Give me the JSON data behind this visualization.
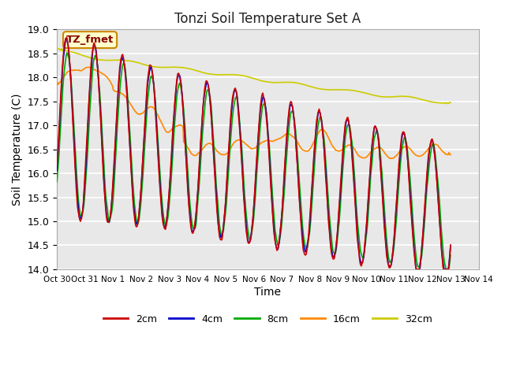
{
  "title": "Tonzi Soil Temperature Set A",
  "xlabel": "Time",
  "ylabel": "Soil Temperature (C)",
  "ylim": [
    14.0,
    19.0
  ],
  "yticks": [
    14.0,
    14.5,
    15.0,
    15.5,
    16.0,
    16.5,
    17.0,
    17.5,
    18.0,
    18.5,
    19.0
  ],
  "xtick_labels": [
    "Oct 30",
    "Oct 31",
    "Nov 1",
    "Nov 2",
    "Nov 3",
    "Nov 4",
    "Nov 5",
    "Nov 6",
    "Nov 7",
    "Nov 8",
    "Nov 9",
    "Nov 10",
    "Nov 11",
    "Nov 12",
    "Nov 13",
    "Nov 14"
  ],
  "legend_labels": [
    "2cm",
    "4cm",
    "8cm",
    "16cm",
    "32cm"
  ],
  "legend_colors": [
    "#cc0000",
    "#0000cc",
    "#00aa00",
    "#ff8800",
    "#cccc00"
  ],
  "annotation_text": "TZ_fmet",
  "annotation_bg": "#ffffcc",
  "annotation_border": "#cc8800",
  "annotation_text_color": "#880000",
  "plot_bg": "#e8e8e8",
  "grid_color": "#ffffff",
  "fig_bg": "#ffffff",
  "line_width": 1.2
}
